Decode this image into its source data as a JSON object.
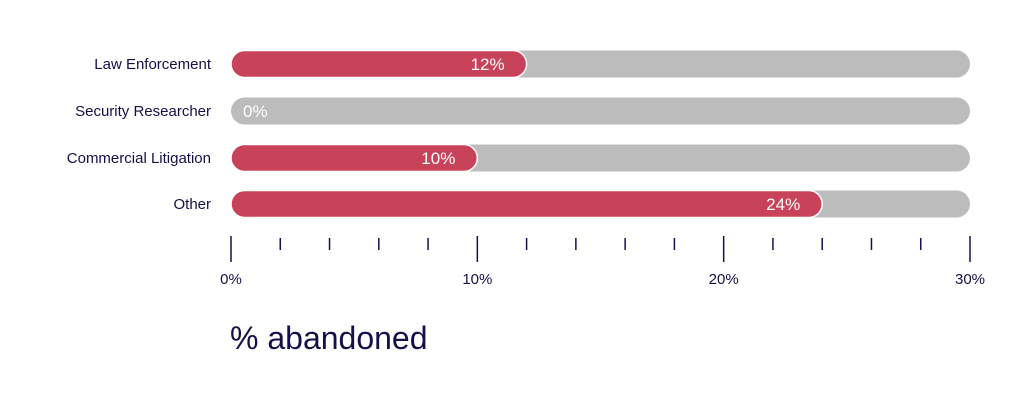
{
  "chart_data": {
    "type": "bar",
    "orientation": "horizontal",
    "stacked_on_track": true,
    "categories": [
      "Law Enforcement",
      "Security Researcher",
      "Commercial Litigation",
      "Other"
    ],
    "values": [
      12,
      0,
      10,
      24
    ],
    "value_labels": [
      "12%",
      "0%",
      "10%",
      "24%"
    ],
    "xlim": [
      0,
      30
    ],
    "xticks": [
      0,
      10,
      20,
      30
    ],
    "xtick_labels": [
      "0%",
      "10%",
      "20%",
      "30%"
    ],
    "minor_tick_step": 2,
    "xlabel": "% abandoned",
    "colors": {
      "bar": "#c8435a",
      "track": "#bcbcbc",
      "text": "#14104a",
      "value_text": "#ffffff"
    }
  }
}
